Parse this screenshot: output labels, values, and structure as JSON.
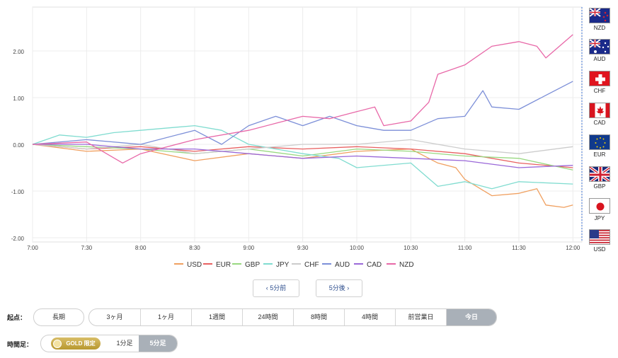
{
  "chart_data": {
    "type": "line",
    "x_labels": [
      "7:00",
      "7:30",
      "8:00",
      "8:30",
      "9:00",
      "9:30",
      "10:00",
      "10:30",
      "11:00",
      "11:30",
      "12:00"
    ],
    "y_ticks": [
      "2.00",
      "1.00",
      "0.00",
      "-1.00",
      "-2.00"
    ],
    "ylim": [
      -2.0,
      2.0
    ],
    "xlim": [
      "7:00",
      "12:05"
    ],
    "grid": true,
    "legend_position": "bottom",
    "series": [
      {
        "name": "USD",
        "color": "#f0a060",
        "x": [
          "7:00",
          "7:30",
          "8:00",
          "8:30",
          "9:00",
          "9:30",
          "10:00",
          "10:30",
          "10:45",
          "10:55",
          "11:00",
          "11:15",
          "11:30",
          "11:40",
          "11:45",
          "11:55",
          "12:00"
        ],
        "values": [
          0.0,
          -0.15,
          -0.1,
          -0.35,
          -0.2,
          -0.3,
          -0.15,
          -0.1,
          -0.4,
          -0.5,
          -0.75,
          -1.1,
          -1.05,
          -0.95,
          -1.3,
          -1.35,
          -1.3
        ]
      },
      {
        "name": "EUR",
        "color": "#e86060",
        "x": [
          "7:00",
          "7:30",
          "8:00",
          "8:30",
          "9:00",
          "9:30",
          "10:00",
          "10:30",
          "11:00",
          "11:30",
          "12:00"
        ],
        "values": [
          0.0,
          -0.1,
          -0.05,
          -0.15,
          -0.05,
          -0.1,
          -0.05,
          -0.1,
          -0.2,
          -0.4,
          -0.5
        ]
      },
      {
        "name": "GBP",
        "color": "#98d880",
        "x": [
          "7:00",
          "7:30",
          "8:00",
          "8:30",
          "9:00",
          "9:30",
          "10:00",
          "10:30",
          "11:00",
          "11:30",
          "12:00"
        ],
        "values": [
          0.0,
          -0.05,
          -0.1,
          -0.2,
          -0.1,
          -0.25,
          -0.1,
          -0.15,
          -0.25,
          -0.3,
          -0.55
        ]
      },
      {
        "name": "JPY",
        "color": "#80dcd0",
        "x": [
          "7:00",
          "7:15",
          "7:30",
          "7:45",
          "8:00",
          "8:30",
          "8:45",
          "9:00",
          "9:30",
          "9:50",
          "10:00",
          "10:30",
          "10:45",
          "11:00",
          "11:15",
          "11:30",
          "12:00"
        ],
        "values": [
          0.0,
          0.2,
          0.15,
          0.25,
          0.3,
          0.4,
          0.3,
          0.0,
          -0.2,
          -0.3,
          -0.5,
          -0.4,
          -0.9,
          -0.8,
          -0.95,
          -0.8,
          -0.85
        ]
      },
      {
        "name": "CHF",
        "color": "#cccccc",
        "x": [
          "7:00",
          "7:30",
          "8:00",
          "8:30",
          "9:00",
          "9:30",
          "10:00",
          "10:30",
          "11:00",
          "11:30",
          "12:00"
        ],
        "values": [
          0.0,
          -0.1,
          0.0,
          -0.2,
          -0.1,
          0.0,
          0.0,
          0.1,
          -0.1,
          -0.2,
          -0.05
        ]
      },
      {
        "name": "AUD",
        "color": "#7c8fd8",
        "x": [
          "7:00",
          "7:30",
          "8:00",
          "8:30",
          "8:45",
          "9:00",
          "9:15",
          "9:30",
          "9:45",
          "10:00",
          "10:15",
          "10:30",
          "10:45",
          "11:00",
          "11:10",
          "11:15",
          "11:30",
          "11:45",
          "12:00"
        ],
        "values": [
          0.0,
          0.1,
          0.0,
          0.3,
          0.0,
          0.4,
          0.6,
          0.4,
          0.6,
          0.4,
          0.3,
          0.3,
          0.55,
          0.6,
          1.15,
          0.8,
          0.75,
          1.05,
          1.35
        ]
      },
      {
        "name": "CAD",
        "color": "#9a68d8",
        "x": [
          "7:00",
          "7:30",
          "8:00",
          "8:30",
          "9:00",
          "9:30",
          "10:00",
          "10:30",
          "11:00",
          "11:30",
          "12:00"
        ],
        "values": [
          0.0,
          0.0,
          -0.1,
          -0.1,
          -0.2,
          -0.3,
          -0.25,
          -0.3,
          -0.35,
          -0.5,
          -0.45
        ]
      },
      {
        "name": "NZD",
        "color": "#e868a8",
        "x": [
          "7:00",
          "7:30",
          "7:50",
          "8:00",
          "8:30",
          "9:00",
          "9:15",
          "9:30",
          "9:45",
          "10:00",
          "10:10",
          "10:15",
          "10:30",
          "10:40",
          "10:45",
          "11:00",
          "11:15",
          "11:30",
          "11:40",
          "11:45",
          "12:00"
        ],
        "values": [
          0.0,
          0.05,
          -0.4,
          -0.2,
          0.1,
          0.3,
          0.45,
          0.6,
          0.55,
          0.7,
          0.8,
          0.4,
          0.5,
          0.9,
          1.5,
          1.7,
          2.1,
          2.2,
          2.1,
          1.85,
          2.35
        ]
      }
    ]
  },
  "flags": [
    {
      "code": "NZD",
      "icon": "nz-flag-icon"
    },
    {
      "code": "AUD",
      "icon": "au-flag-icon"
    },
    {
      "code": "CHF",
      "icon": "ch-flag-icon"
    },
    {
      "code": "CAD",
      "icon": "ca-flag-icon"
    },
    {
      "code": "EUR",
      "icon": "eu-flag-icon"
    },
    {
      "code": "GBP",
      "icon": "gb-flag-icon"
    },
    {
      "code": "JPY",
      "icon": "jp-flag-icon"
    },
    {
      "code": "USD",
      "icon": "us-flag-icon"
    }
  ],
  "nav": {
    "prev_label": "‹ 5分前",
    "next_label": "5分後 ›"
  },
  "origin": {
    "label": "起点：",
    "long_label": "長期",
    "options": [
      "3ヶ月",
      "1ヶ月",
      "1週間",
      "24時間",
      "8時間",
      "4時間",
      "前営業日",
      "今日"
    ],
    "active": "今日"
  },
  "timeframe": {
    "label": "時間足：",
    "gold_label": "GOLD 限定",
    "options": [
      "1分足",
      "5分足"
    ],
    "active": "5分足"
  }
}
